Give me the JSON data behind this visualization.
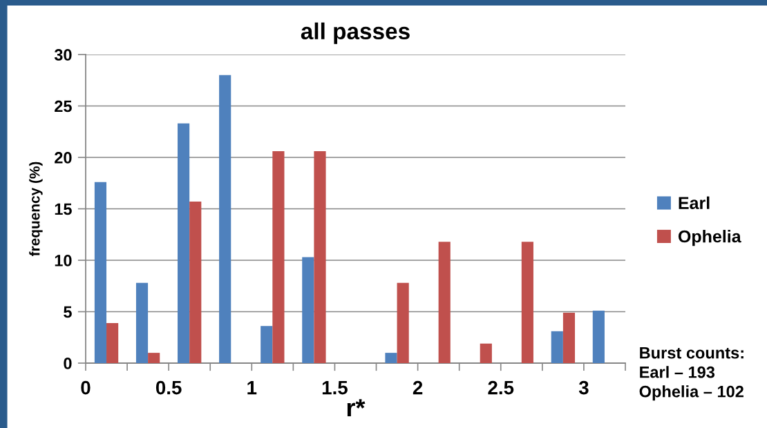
{
  "chart_data": {
    "type": "bar",
    "title": "all passes",
    "xlabel": "r*",
    "ylabel": "frequency (%)",
    "x": [
      0.125,
      0.375,
      0.625,
      0.875,
      1.125,
      1.375,
      1.625,
      1.875,
      2.125,
      2.375,
      2.625,
      2.875,
      3.125
    ],
    "series": [
      {
        "name": "Earl",
        "color": "#4f81bd",
        "values": [
          17.6,
          7.8,
          23.3,
          28.0,
          3.6,
          10.3,
          0,
          1.0,
          0,
          0,
          0,
          3.1,
          5.1
        ]
      },
      {
        "name": "Ophelia",
        "color": "#c0504d",
        "values": [
          3.9,
          1.0,
          15.7,
          0,
          20.6,
          20.6,
          0,
          7.8,
          11.8,
          1.9,
          11.8,
          4.9,
          0
        ]
      }
    ],
    "xlim": [
      0,
      3.25
    ],
    "xticks": [
      0,
      {
        "value": 0.25,
        "label": null
      },
      0.5,
      {
        "value": 0.75,
        "label": null
      },
      1,
      {
        "value": 1.25,
        "label": null
      },
      1.5,
      {
        "value": 1.75,
        "label": null
      },
      2,
      {
        "value": 2.25,
        "label": null
      },
      2.5,
      {
        "value": 2.75,
        "label": null
      },
      3,
      {
        "value": 3.25,
        "label": null
      }
    ],
    "ylim": [
      0,
      30
    ],
    "yticks": [
      0,
      5,
      10,
      15,
      20,
      25,
      30
    ],
    "grid": "y",
    "legend": "right",
    "annotations": [
      "Burst counts:\nEarl – 193\nOphelia – 102"
    ]
  }
}
